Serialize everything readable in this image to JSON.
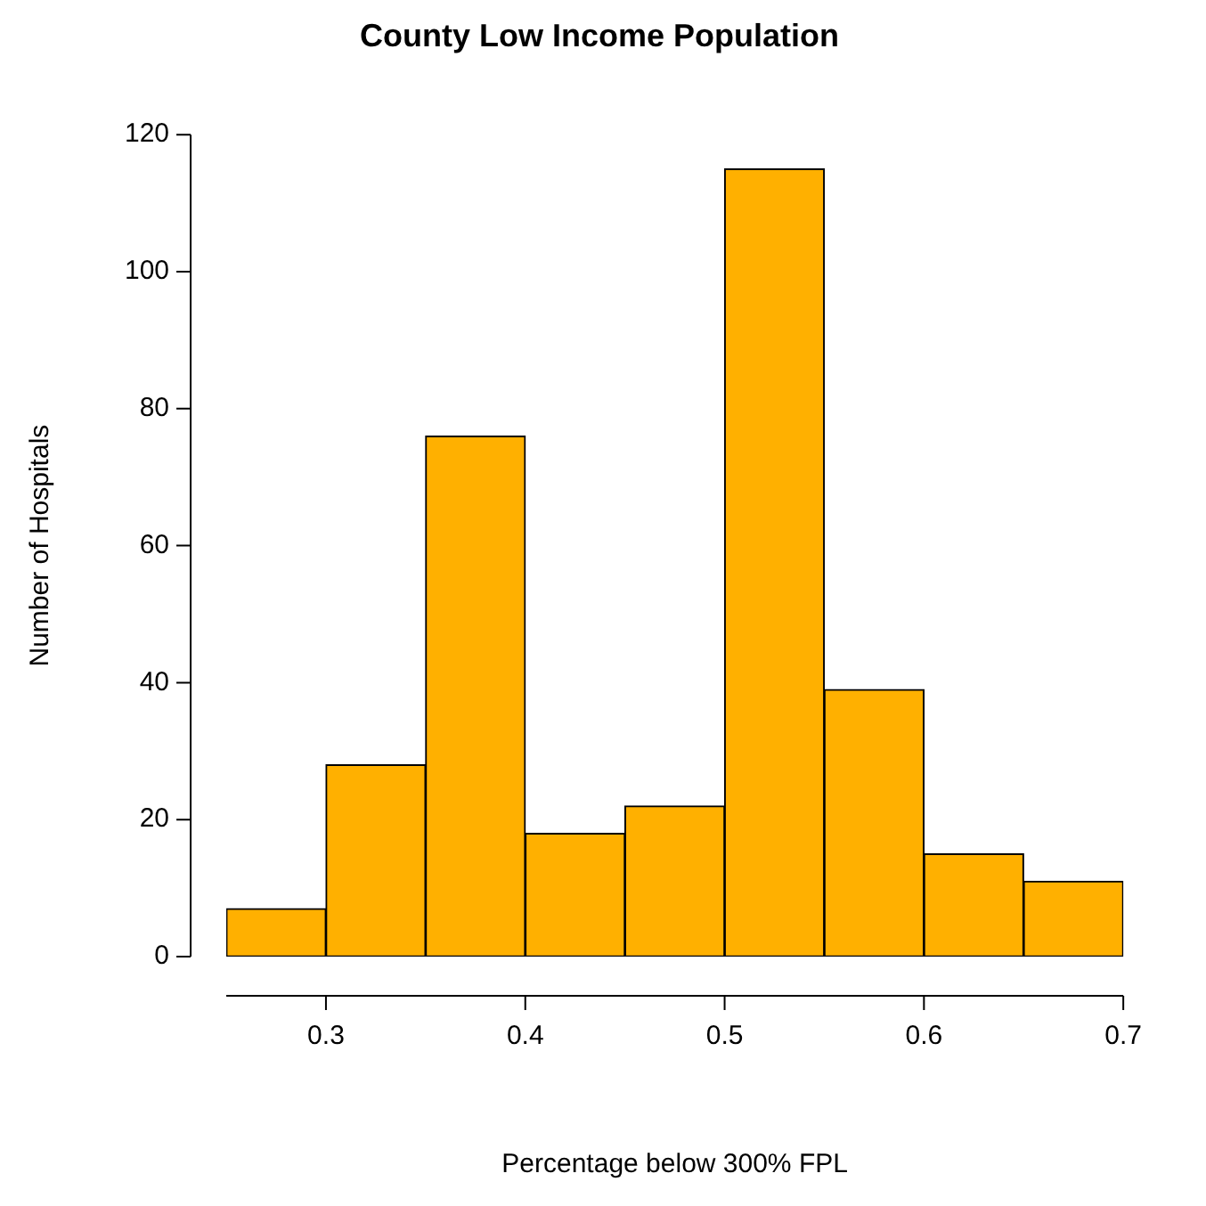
{
  "chart_data": {
    "type": "histogram",
    "title": "County Low Income Population",
    "xlabel": "Percentage below 300% FPL",
    "ylabel": "Number of Hospitals",
    "bins": [
      0.25,
      0.3,
      0.35,
      0.4,
      0.45,
      0.5,
      0.55,
      0.6,
      0.65,
      0.7
    ],
    "values": [
      7,
      28,
      76,
      18,
      22,
      115,
      39,
      15,
      11
    ],
    "color": "#ffb000",
    "xlim": [
      0.25,
      0.7
    ],
    "xticks": [
      0.3,
      0.4,
      0.5,
      0.6,
      0.7
    ],
    "ylim": [
      0,
      120
    ],
    "yticks": [
      0,
      20,
      40,
      60,
      80,
      100,
      120
    ],
    "grid": false,
    "legend": false
  }
}
